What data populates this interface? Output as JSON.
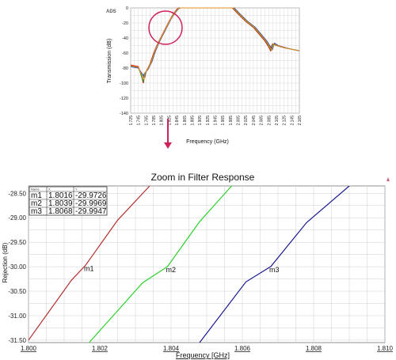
{
  "chart_data": [
    {
      "type": "line",
      "logo_text": "ADS",
      "xlabel": "Frequency (GHz)",
      "ylabel": "Transmission (dB)",
      "xlim": [
        1.725,
        2.165
      ],
      "ylim": [
        -140,
        0
      ],
      "x_ticks": [
        "1.725",
        "1.745",
        "1.765",
        "1.785",
        "1.805",
        "1.825",
        "1.845",
        "1.865",
        "1.885",
        "1.905",
        "1.925",
        "1.945",
        "1.965",
        "1.985",
        "2.005",
        "2.025",
        "2.045",
        "2.065",
        "2.085",
        "2.105",
        "2.125",
        "2.145",
        "2.165"
      ],
      "y_ticks": [
        "0",
        "-20",
        "-40",
        "-60",
        "-80",
        "-100",
        "-120",
        "-140"
      ],
      "grid": true,
      "series": [
        {
          "color": "#d62020",
          "x": [
            1.725,
            1.745,
            1.75,
            1.755,
            1.758,
            1.76,
            1.765,
            1.775,
            1.785,
            1.795,
            1.805,
            1.815,
            1.825,
            1.835,
            1.845,
            1.85,
            1.855,
            1.875,
            1.905,
            1.935,
            1.965,
            1.985,
            1.99,
            2.005,
            2.025,
            2.045,
            2.055,
            2.065,
            2.075,
            2.085,
            2.09,
            2.093,
            2.095,
            2.105,
            2.125,
            2.145,
            2.165
          ],
          "y": [
            -76,
            -78,
            -85,
            -94,
            -100,
            -88,
            -85,
            -75,
            -60,
            -48,
            -38,
            -28,
            -18,
            -9,
            -2,
            0,
            0,
            0,
            0,
            0,
            0,
            0,
            0,
            -8,
            -18,
            -26,
            -32,
            -38,
            -44,
            -52,
            -57,
            -50,
            -48,
            -50,
            -53,
            -55,
            -57
          ]
        },
        {
          "color": "#2a9a2a",
          "x": [
            1.725,
            1.745,
            1.75,
            1.755,
            1.759,
            1.761,
            1.767,
            1.777,
            1.787,
            1.797,
            1.807,
            1.817,
            1.827,
            1.837,
            1.847,
            1.852,
            1.857,
            1.875,
            1.905,
            1.935,
            1.965,
            1.987,
            1.992,
            2.007,
            2.027,
            2.047,
            2.057,
            2.067,
            2.077,
            2.087,
            2.092,
            2.095,
            2.097,
            2.107,
            2.127,
            2.145,
            2.165
          ],
          "y": [
            -77,
            -79,
            -86,
            -94,
            -98,
            -87,
            -84,
            -74,
            -59,
            -47,
            -37,
            -27,
            -17,
            -8,
            -2,
            0,
            0,
            0,
            0,
            0,
            0,
            0,
            0,
            -8,
            -18,
            -26,
            -32,
            -38,
            -44,
            -52,
            -56,
            -49,
            -48,
            -50,
            -53,
            -55,
            -57
          ]
        },
        {
          "color": "#1f3ea8",
          "x": [
            1.725,
            1.745,
            1.75,
            1.755,
            1.762,
            1.765,
            1.77,
            1.78,
            1.79,
            1.8,
            1.81,
            1.82,
            1.83,
            1.84,
            1.85,
            1.855,
            1.86,
            1.875,
            1.905,
            1.935,
            1.965,
            1.99,
            1.995,
            2.01,
            2.03,
            2.05,
            2.06,
            2.07,
            2.08,
            2.09,
            2.095,
            2.098,
            2.1,
            2.11,
            2.13,
            2.145,
            2.165
          ],
          "y": [
            -78,
            -80,
            -84,
            -88,
            -92,
            -85,
            -82,
            -72,
            -57,
            -45,
            -35,
            -25,
            -15,
            -7,
            -1,
            0,
            0,
            0,
            0,
            0,
            0,
            0,
            0,
            -8,
            -18,
            -26,
            -32,
            -38,
            -44,
            -52,
            -55,
            -49,
            -47,
            -50,
            -53,
            -55,
            -57
          ]
        },
        {
          "color": "#e09020",
          "x": [
            1.725,
            1.745,
            1.75,
            1.756,
            1.76,
            1.763,
            1.768,
            1.778,
            1.788,
            1.798,
            1.808,
            1.818,
            1.828,
            1.838,
            1.848,
            1.853,
            1.858,
            1.875,
            1.905,
            1.935,
            1.965,
            1.988,
            1.993,
            2.008,
            2.028,
            2.048,
            2.058,
            2.068,
            2.078,
            2.088,
            2.093,
            2.096,
            2.098,
            2.108,
            2.128,
            2.145,
            2.165
          ],
          "y": [
            -77,
            -79,
            -85,
            -91,
            -95,
            -86,
            -83,
            -73,
            -58,
            -46,
            -36,
            -26,
            -16,
            -8,
            -1,
            0,
            0,
            0,
            0,
            0,
            0,
            0,
            0,
            -8,
            -18,
            -26,
            -32,
            -38,
            -44,
            -52,
            -56,
            -50,
            -48,
            -50,
            -53,
            -55,
            -57
          ]
        }
      ]
    },
    {
      "type": "line",
      "title": "Zoom in Filter Response",
      "xlabel": "Frequency [GHz]",
      "ylabel": "Rejection (dB)",
      "xlim": [
        1.8,
        1.81
      ],
      "ylim": [
        -31.55,
        -28.35
      ],
      "x_ticks": [
        "1.800",
        "1.802",
        "1.804",
        "1.806",
        "1.808",
        "1.810"
      ],
      "y_ticks": [
        "-28.50",
        "-29.00",
        "-29.50",
        "-30.00",
        "-30.50",
        "-31.00",
        "-31.50"
      ],
      "grid": true,
      "series": [
        {
          "color": "#b23030",
          "x": [
            1.8,
            1.8012,
            1.8016,
            1.8025,
            1.8034
          ],
          "y": [
            -31.5,
            -30.28,
            -29.97,
            -29.05,
            -28.35
          ]
        },
        {
          "color": "#30d030",
          "x": [
            1.8017,
            1.8032,
            1.8039,
            1.8048,
            1.8057
          ],
          "y": [
            -31.55,
            -30.33,
            -29.9969,
            -29.08,
            -28.35
          ]
        },
        {
          "color": "#1a1a90",
          "x": [
            1.8048,
            1.8061,
            1.8068,
            1.8078,
            1.809
          ],
          "y": [
            -31.55,
            -30.31,
            -29.9947,
            -29.1,
            -28.35
          ]
        }
      ],
      "markers": [
        {
          "name": "m1",
          "freq": "1.8016",
          "value": "-29.9726"
        },
        {
          "name": "m2",
          "freq": "1.8039",
          "value": "-29.9969"
        },
        {
          "name": "m3",
          "freq": "1.8068",
          "value": "-29.9947"
        }
      ],
      "marker_table_headers": [
        "Name",
        "X",
        "Y"
      ]
    }
  ]
}
